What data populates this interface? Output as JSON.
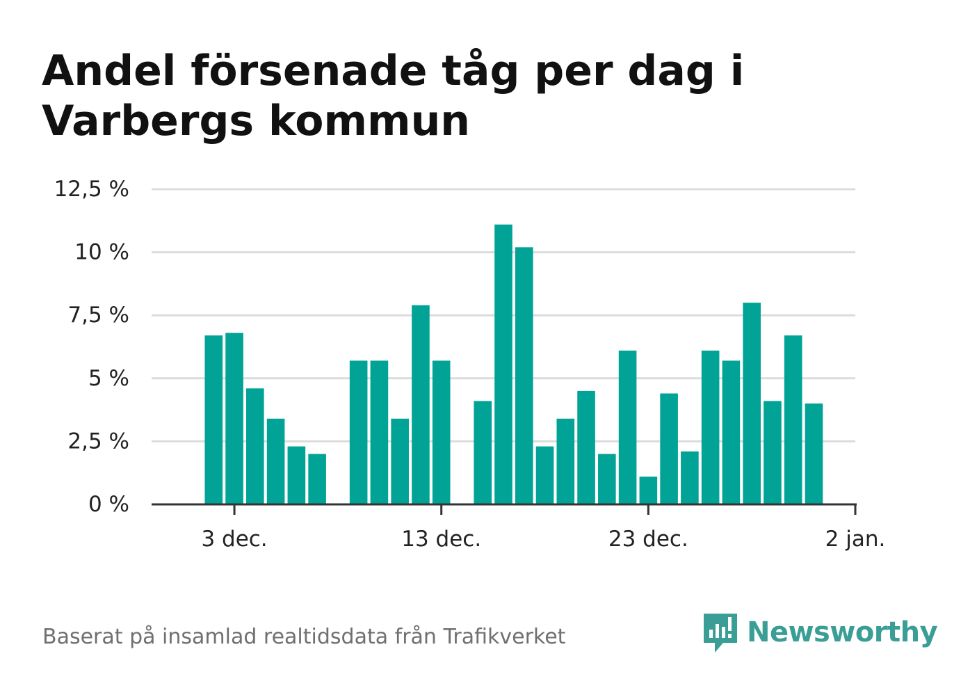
{
  "chart_data": {
    "type": "bar",
    "title": "Andel försenade tåg per dag i Varbergs kommun",
    "xlabel": "",
    "ylabel": "",
    "ylim": [
      0,
      12.5
    ],
    "grid": true,
    "yticks": [
      0,
      2.5,
      5,
      7.5,
      10,
      12.5
    ],
    "ytick_labels": [
      "0 %",
      "2,5 %",
      "5 %",
      "7,5 %",
      "10 %",
      "12,5 %"
    ],
    "xticks": [
      3,
      13,
      23,
      33
    ],
    "xtick_labels": [
      "3 dec.",
      "13 dec.",
      "23 dec.",
      "2 jan."
    ],
    "x_domain": [
      -1,
      33
    ],
    "x": [
      2,
      3,
      4,
      5,
      6,
      7,
      9,
      10,
      11,
      12,
      13,
      15,
      16,
      17,
      18,
      19,
      20,
      21,
      22,
      23,
      24,
      25,
      26,
      27,
      28,
      29,
      30,
      31
    ],
    "values": [
      6.7,
      6.8,
      4.6,
      3.4,
      2.3,
      2.0,
      5.7,
      5.7,
      3.4,
      7.9,
      5.7,
      4.1,
      11.1,
      10.2,
      2.3,
      3.4,
      4.5,
      2.0,
      6.1,
      1.1,
      4.4,
      2.1,
      6.1,
      5.7,
      8.0,
      4.1,
      6.7,
      4.0
    ],
    "bar_color": "#00a396"
  },
  "footer": "Baserat på insamlad realtidsdata från Trafikverket",
  "brand": {
    "name": "Newsworthy",
    "color": "#3b9e96"
  }
}
